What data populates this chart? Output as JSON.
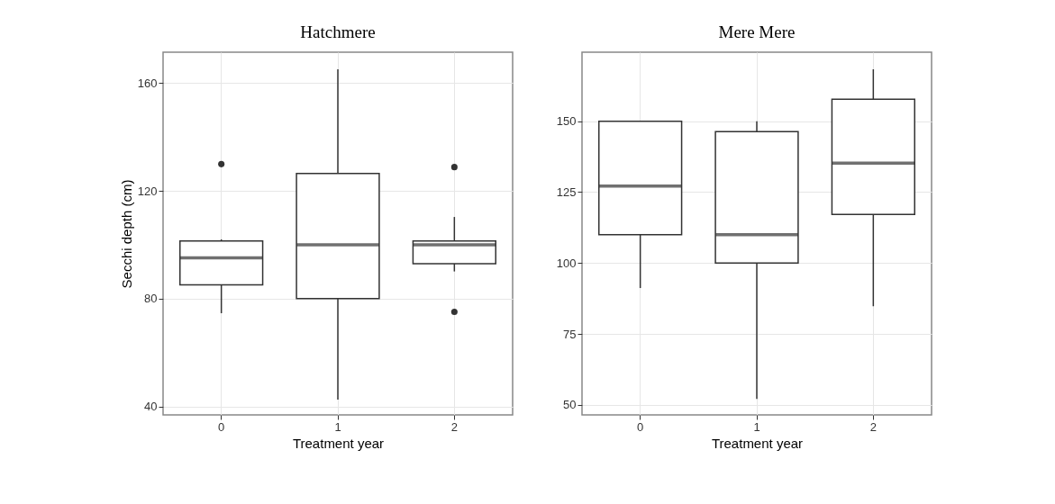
{
  "chart_data": [
    {
      "type": "box",
      "title": "Hatchmere",
      "xlabel": "Treatment year",
      "ylabel": "Secchi depth (cm)",
      "categories": [
        "0",
        "1",
        "2"
      ],
      "boxes": [
        {
          "low": 74.6,
          "q1": 85.1,
          "median": 95.1,
          "q3": 101.4,
          "high": 102,
          "outliers": [
            129.9
          ]
        },
        {
          "low": 42.6,
          "q1": 80,
          "median": 100,
          "q3": 126.4,
          "high": 165.1
        },
        {
          "low": 90.1,
          "q1": 93,
          "median": 100,
          "q3": 101.4,
          "high": 110.3,
          "outliers": [
            128.8,
            75.1
          ]
        }
      ],
      "ylim": [
        36.9,
        171.4
      ],
      "yticks": [
        40,
        80,
        120,
        160
      ],
      "grid": true
    },
    {
      "type": "box",
      "title": "Mere Mere",
      "xlabel": "Treatment year",
      "categories": [
        "0",
        "1",
        "2"
      ],
      "boxes": [
        {
          "low": 91.2,
          "q1": 110,
          "median": 127.1,
          "q3": 150,
          "high": 150
        },
        {
          "low": 52.1,
          "q1": 100,
          "median": 110,
          "q3": 146.3,
          "high": 150
        },
        {
          "low": 84.8,
          "q1": 117.1,
          "median": 135.2,
          "q3": 157.7,
          "high": 168.3
        }
      ],
      "ylim": [
        46.5,
        174.3
      ],
      "yticks": [
        50,
        75,
        100,
        125,
        150
      ],
      "grid": true
    }
  ]
}
